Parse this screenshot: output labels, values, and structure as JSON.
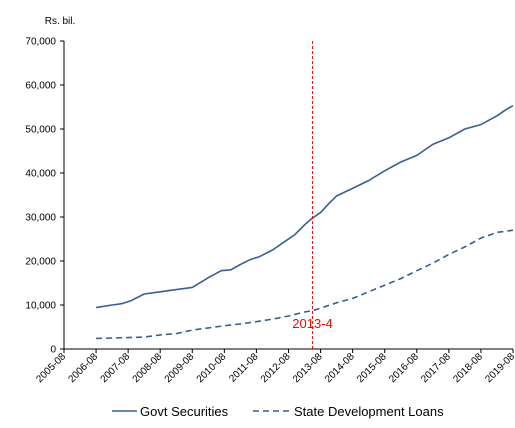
{
  "chart_data": {
    "type": "line",
    "ylabel": "Rs. bil.",
    "ylim": [
      0,
      70000
    ],
    "yticks": [
      0,
      10000,
      20000,
      30000,
      40000,
      50000,
      60000,
      70000
    ],
    "ytick_labels": [
      "0",
      "10,000",
      "20,000",
      "30,000",
      "40,000",
      "50,000",
      "60,000",
      "70,000"
    ],
    "xlim": [
      2005.5,
      2019.5
    ],
    "xticks": [
      2005.5,
      2006.5,
      2007.5,
      2008.5,
      2009.5,
      2010.5,
      2011.5,
      2012.5,
      2013.5,
      2014.5,
      2015.5,
      2016.5,
      2017.5,
      2018.5,
      2019.5
    ],
    "xtick_labels": [
      "2005-08",
      "2006-08",
      "2007-08",
      "2008-08",
      "2009-08",
      "2010-08",
      "2011-08",
      "2012-08",
      "2013-08",
      "2014-08",
      "2015-08",
      "2016-08",
      "2017-08",
      "2018-08",
      "2019-08"
    ],
    "grid": false,
    "legend_position": "bottom",
    "annotation": {
      "x": 2013.25,
      "label": "2013-4",
      "color": "#ff0000"
    },
    "series": [
      {
        "name": "Govt Securities",
        "color": "#3a5f8f",
        "dash": "solid",
        "points": [
          [
            2006.5,
            9400
          ],
          [
            2007.0,
            10000
          ],
          [
            2007.3,
            10300
          ],
          [
            2007.6,
            11000
          ],
          [
            2008.0,
            12500
          ],
          [
            2008.5,
            13000
          ],
          [
            2009.0,
            13500
          ],
          [
            2009.5,
            14000
          ],
          [
            2010.0,
            16200
          ],
          [
            2010.4,
            17800
          ],
          [
            2010.7,
            18000
          ],
          [
            2011.0,
            19200
          ],
          [
            2011.3,
            20300
          ],
          [
            2011.6,
            21000
          ],
          [
            2012.0,
            22500
          ],
          [
            2012.4,
            24500
          ],
          [
            2012.7,
            26000
          ],
          [
            2013.0,
            28200
          ],
          [
            2013.25,
            29800
          ],
          [
            2013.5,
            31000
          ],
          [
            2013.75,
            33000
          ],
          [
            2014.0,
            34800
          ],
          [
            2014.5,
            36500
          ],
          [
            2015.0,
            38300
          ],
          [
            2015.5,
            40500
          ],
          [
            2016.0,
            42500
          ],
          [
            2016.5,
            44000
          ],
          [
            2017.0,
            46500
          ],
          [
            2017.5,
            48000
          ],
          [
            2018.0,
            50000
          ],
          [
            2018.5,
            51000
          ],
          [
            2019.0,
            53000
          ],
          [
            2019.3,
            54500
          ],
          [
            2019.5,
            55300
          ]
        ]
      },
      {
        "name": "State Development Loans",
        "color": "#3a5f8f",
        "dash": "dashed",
        "points": [
          [
            2006.5,
            2400
          ],
          [
            2007.0,
            2500
          ],
          [
            2007.5,
            2600
          ],
          [
            2008.0,
            2700
          ],
          [
            2008.5,
            3200
          ],
          [
            2009.0,
            3500
          ],
          [
            2009.5,
            4300
          ],
          [
            2010.0,
            4800
          ],
          [
            2010.5,
            5300
          ],
          [
            2011.0,
            5700
          ],
          [
            2011.5,
            6200
          ],
          [
            2012.0,
            6800
          ],
          [
            2012.5,
            7500
          ],
          [
            2013.0,
            8400
          ],
          [
            2013.25,
            8700
          ],
          [
            2013.5,
            9300
          ],
          [
            2014.0,
            10500
          ],
          [
            2014.5,
            11500
          ],
          [
            2015.0,
            13000
          ],
          [
            2015.5,
            14500
          ],
          [
            2016.0,
            16000
          ],
          [
            2016.5,
            17800
          ],
          [
            2017.0,
            19500
          ],
          [
            2017.5,
            21500
          ],
          [
            2018.0,
            23200
          ],
          [
            2018.5,
            25200
          ],
          [
            2019.0,
            26500
          ],
          [
            2019.5,
            27000
          ]
        ]
      }
    ]
  }
}
